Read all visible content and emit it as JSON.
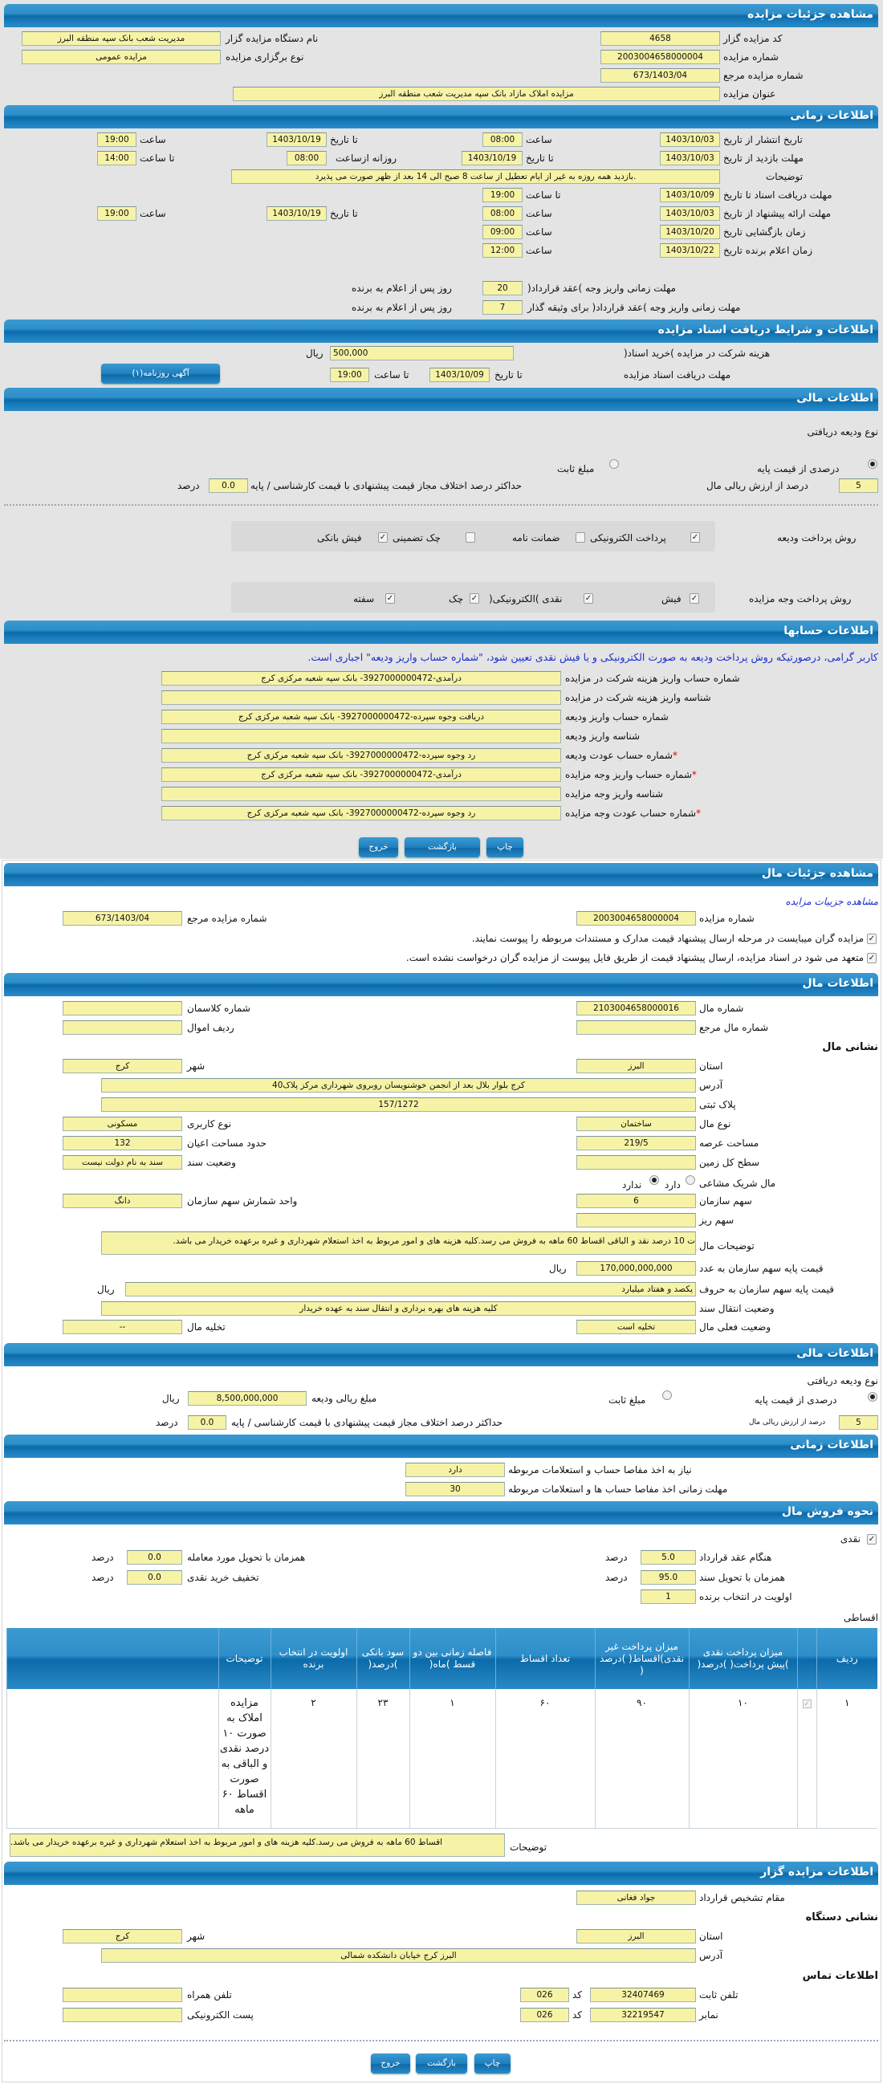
{
  "auction": {
    "title": "مشاهده جزئیات مزایده",
    "code_label": "کد مزایده گزار",
    "code": "4658",
    "org_label": "نام دستگاه مزایده گزار",
    "org": "مدیریت شعب بانک سپه منطقه البرز",
    "number_label": "شماره مزایده",
    "number": "2003004658000004",
    "type_label": "نوع برگزاری مزایده",
    "type": "مزایده عمومی",
    "ref_label": "شماره مزایده مرجع",
    "ref": "673/1403/04",
    "subject_label": "عنوان مزایده",
    "subject": "مزایده املاک مازاد بانک سپه مدیریت شعب منطقه البرز"
  },
  "timing": {
    "title": "اطلاعات زمانی",
    "publish": {
      "label": "تاریخ انتشار  از تاریخ",
      "from": "1403/10/03",
      "time_label": "ساعت",
      "from_time": "08:00",
      "to_label": "تا تاریخ",
      "to": "1403/10/19",
      "to_time_label": "ساعت",
      "to_time": "19:00"
    },
    "visit": {
      "label": "مهلت بازدید  از تاریخ",
      "from": "1403/10/03",
      "to_label": "تا تاریخ",
      "to": "1403/10/19",
      "daily_label": "روزانه ازساعت",
      "daily_from": "08:00",
      "to_time_label": "تا ساعت",
      "to_time": "14:00"
    },
    "notes_label": "توضیحات",
    "notes": ".بازدید همه روزه به غیر از ایام تعطیل از ساعت 8 صبح الی 14 بعد از ظهر صورت می پذیرد",
    "docs": {
      "label": "مهلت دریافت اسناد  تا تاریخ",
      "date": "1403/10/09",
      "time_label": "تا ساعت",
      "time": "19:00"
    },
    "offer": {
      "label": "مهلت ارائه پیشنهاد  از تاریخ",
      "from": "1403/10/03",
      "time_label": "ساعت",
      "from_time": "08:00",
      "to_label": "تا تاریخ",
      "to": "1403/10/19",
      "to_time_label": "ساعت",
      "to_time": "19:00"
    },
    "opening": {
      "label": "زمان بازگشایی   تاریخ",
      "date": "1403/10/20",
      "time_label": "ساعت",
      "time": "09:00"
    },
    "winner": {
      "label": "زمان اعلام برنده   تاریخ",
      "date": "1403/10/22",
      "time_label": "ساعت",
      "time": "12:00"
    },
    "pay_deadline_label": "مهلت زمانی واریز وجه )عقد قرارداد(",
    "pay_deadline": "20",
    "pay_deadline_suffix": "روز پس از اعلام به برنده",
    "pay_deadline2_label": "مهلت زمانی واریز وجه )عقد قرارداد( برای وثیقه گذار",
    "pay_deadline2": "7",
    "pay_deadline2_suffix": "روز پس از اعلام به برنده"
  },
  "docs_section": {
    "title": "اطلاعات و شرایط دریافت اسناد مزایده",
    "fee_label": "هزینه شرکت در مزایده )خرید اسناد(",
    "fee": "500,000",
    "fee_unit": "ریال",
    "deadline_label": "مهلت دریافت اسناد مزایده",
    "to_date_label": "تا تاریخ",
    "to_date": "1403/10/09",
    "to_time_label": "تا ساعت",
    "to_time": "19:00",
    "ad_button": "آگهی روزنامه(۱)"
  },
  "finance": {
    "title": "اطلاعات مالی",
    "deposit_type_label": "نوع ودیعه دریافتی",
    "percent_label": "درصدی از قیمت پایه",
    "percent_selected": true,
    "fixed_label": "مبلغ ثابت",
    "fixed_selected": false,
    "percent": "5",
    "percent_suffix": "درصد از ارزش ریالی مال",
    "maxdiff_label": "حداکثر درصد اختلاف مجاز قیمت پیشنهادی با قیمت کارشناسی / پایه",
    "maxdiff": "0.0",
    "maxdiff_unit": "درصد",
    "deposit_methods_label": "روش پرداخت ودیعه",
    "deposit_methods": [
      {
        "label": "پرداخت الکترونیکی",
        "checked": true
      },
      {
        "label": "ضمانت نامه",
        "checked": false
      },
      {
        "label": "چک تضمینی",
        "checked": false
      },
      {
        "label": "فیش بانکی",
        "checked": true
      }
    ],
    "payment_methods_label": "روش پرداخت وجه مزایده",
    "payment_methods": [
      {
        "label": "فیش",
        "checked": true
      },
      {
        "label": "نقدی )الکترونیکی(",
        "checked": true
      },
      {
        "label": "چک",
        "checked": true
      },
      {
        "label": "سفته",
        "checked": true
      }
    ]
  },
  "accounts": {
    "title": "اطلاعات حسابها",
    "notice": "کاربر گرامی، درصورتیکه روش پرداخت ودیعه به صورت الکترونیکی و یا فیش نقدی تعیین شود، \"شماره حساب واریز ودیعه\" اجباری است.",
    "rows": [
      {
        "label": "شماره حساب واریز هزینه شرکت در مزایده",
        "value": "درآمدی-3927000000472- بانک سپه شعبه مرکزی کرج",
        "required": false
      },
      {
        "label": "شناسه واریز هزینه شرکت در مزایده",
        "value": "",
        "required": false
      },
      {
        "label": "شماره حساب واریز ودیعه",
        "value": "دریافت وجوه سپرده-3927000000472- بانک سپه شعبه مرکزی کرج",
        "required": false
      },
      {
        "label": "شناسه واریز ودیعه",
        "value": "",
        "required": false
      },
      {
        "label": "شماره حساب عودت ودیعه",
        "value": "رد وجوه سپرده-3927000000472- بانک سپه شعبه مرکزی کرج",
        "required": true
      },
      {
        "label": "شماره حساب واریز وجه مزایده",
        "value": "درآمدی-3927000000472- بانک سپه شعبه مرکزی کرج",
        "required": true
      },
      {
        "label": "شناسه واریز وجه مزایده",
        "value": "",
        "required": false
      },
      {
        "label": "شماره حساب عودت وجه مزایده",
        "value": "رد وجوه سپرده-3927000000472- بانک سپه شعبه مرکزی کرج",
        "required": true
      }
    ],
    "required_mark": "*"
  },
  "buttons": {
    "print": "چاپ",
    "back": "بازگشت",
    "exit": "خروج"
  },
  "item": {
    "title": "مشاهده جزئیات مال",
    "link": "مشاهده جزییات مزایده",
    "number_label": "شماره مزایده",
    "number": "2003004658000004",
    "ref_label": "شماره مزایده مرجع",
    "ref": "673/1403/04",
    "check1": "مزایده گران میبایست در مرحله ارسال پیشنهاد قیمت مدارک و مستندات مربوطه را پیوست نمایند.",
    "check2": "متعهد می شود در اسناد مزایده، ارسال پیشنهاد قیمت از طریق فایل پیوست از مزایده گران درخواست نشده است."
  },
  "item_info": {
    "title": "اطلاعات مال",
    "item_no_label": "شماره مال",
    "item_no": "2103004658000016",
    "class_label": "شماره کلاسمان",
    "class": "",
    "item_ref_label": "شماره مال مرجع",
    "item_ref": "",
    "row_label": "ردیف اموال",
    "row": "",
    "address_heading": "نشانی مال",
    "province_label": "استان",
    "province": "البرز",
    "city_label": "شهر",
    "city": "کرج",
    "address_label": "آدرس",
    "address": "کرج بلوار بلال بعد از انجمن خوشنویسان روبروی شهرداری مرکز پلاک40",
    "plate_label": "پلاک ثبتی",
    "plate": "157/1272",
    "kind_label": "نوع مال",
    "kind": "ساختمان",
    "usage_label": "نوع کاربری",
    "usage": "مسکونی",
    "land_area_label": "مساحت عرصه",
    "land_area": "219/5",
    "building_area_label": "حدود مساحت اعیان",
    "building_area": "132",
    "total_land_label": "سطح کل زمین",
    "total_land": "",
    "deed_label": "وضعیت سند",
    "deed": "سند به نام دولت نیست",
    "shared_label": "مال شریک مشاعی",
    "shared_yes": "دارد",
    "shared_no": "ندارد",
    "shared": false,
    "share_label": "سهم سازمان",
    "share": "6",
    "share_unit_label": "واحد شمارش سهم سازمان",
    "share_unit": "دانگ",
    "small_share_label": "سهم ریز",
    "small_share": "",
    "desc_label": "توضیحات مال",
    "desc": "ت 10 درصد نقد و الباقی اقساط 60 ماهه به فروش می رسد.کلیه هزینه های و امور مربوط به اخذ استعلام شهرداری و غیره برعهده خریدار می باشد.",
    "price_label": "قیمت پایه سهم سازمان به عدد",
    "price": "170,000,000,000",
    "price_unit": "ریال",
    "price_words_label": "قیمت پایه سهم سازمان به حروف",
    "price_words": "یکصد و هفتاد میلیارد",
    "price_words_unit": "ریال",
    "transfer_label": "وضعیت انتقال سند",
    "transfer": "کلیه هزینه های بهره برداری و انتقال سند به عهده خریدار",
    "status_label": "وضعیت فعلی مال",
    "status": "تخلیه است",
    "evac_label": "تخلیه مال",
    "evac": "--"
  },
  "item_finance": {
    "title": "اطلاعات مالی",
    "deposit_type_label": "نوع ودیعه دریافتی",
    "percent_label": "درصدی از قیمت پایه",
    "percent_selected": true,
    "fixed_label": "مبلغ ثابت",
    "fixed_selected": false,
    "deposit_amount_label": "مبلغ ریالی ودیعه",
    "deposit_amount": "8,500,000,000",
    "deposit_unit": "ریال",
    "percent": "5",
    "percent_suffix": "درصد از ارزش ریالی مال",
    "maxdiff_label": "حداکثر درصد اختلاف مجاز قیمت پیشنهادی با قیمت کارشناسی / پایه",
    "maxdiff": "0.0",
    "maxdiff_unit": "درصد"
  },
  "item_timing": {
    "title": "اطلاعات زمانی",
    "clearance_label": "نیاز به اخذ مفاصا حساب و استعلامات مربوطه",
    "clearance": "دارد",
    "clearance_days_label": "مهلت زمانی اخذ مفاصا حساب ها و استعلامات مربوطه",
    "clearance_days": "30"
  },
  "sale": {
    "title": "نحوه فروش مال",
    "cash_label": "نقدی",
    "cash": true,
    "unit": "درصد",
    "contract_label": "هنگام عقد قرارداد",
    "contract": "5.0",
    "deed_label": "همزمان با تحویل سند",
    "deed": "95.0",
    "priority_label": "اولویت در انتخاب برنده",
    "priority": "1",
    "delivery_label": "همزمان با تحویل مورد معامله",
    "delivery": "0.0",
    "discount_label": "تخفیف خرید نقدی",
    "discount": "0.0",
    "installment_label": "اقساطی",
    "table": {
      "headers": [
        "ردیف",
        "",
        "میزان پرداخت نقدی )پیش پرداخت( )درصد(",
        "میزان پرداخت غیر نقدی)اقساط( )درصد (",
        "تعداد اقساط",
        "فاصله زمانی بین دو قسط )ماه(",
        "سود بانکی )درصد(",
        "اولویت در انتخاب برنده",
        "توضیحات",
        ""
      ],
      "rows": [
        {
          "row": "۱",
          "checked": true,
          "cash": "۱۰",
          "noncash": "۹۰",
          "count": "۶۰",
          "interval": "۱",
          "interest": "۲۳",
          "priority": "۲",
          "desc": "مزایده املاک به صورت ۱۰ درصد نقدی و الباقی به صورت اقساط ۶۰ ماهه"
        }
      ]
    },
    "notes_label": "توضیحات",
    "notes": "اقساط 60 ماهه به فروش می رسد.کلیه هزینه های و امور مربوط به اخذ استعلام شهرداری و غیره برعهده خریدار می باشد."
  },
  "auctioneer": {
    "title": "اطلاعات مزایده گزار",
    "authority_label": "مقام تشخیص قرارداد",
    "authority": "جواد فغانی",
    "address_heading": "نشانی دستگاه",
    "province_label": "استان",
    "province": "البرز",
    "city_label": "شهر",
    "city": "کرج",
    "address_label": "آدرس",
    "address": "البرز کرج خیابان دانشکده شمالی",
    "contact_heading": "اطلاعات تماس",
    "phone_label": "تلفن ثابت",
    "phone": "32407469",
    "code_label": "کد",
    "phone_code": "026",
    "fax_label": "نمابر",
    "fax": "32219547",
    "fax_code": "026",
    "mobile_label": "تلفن همراه",
    "mobile": "",
    "email_label": "پست الکترونیکی",
    "email": ""
  },
  "colors": {
    "header_blue": "#1b7dbd",
    "field_yellow": "#f7f3a6",
    "notice_blue": "#1a2fd0",
    "required_red": "#e00000"
  }
}
